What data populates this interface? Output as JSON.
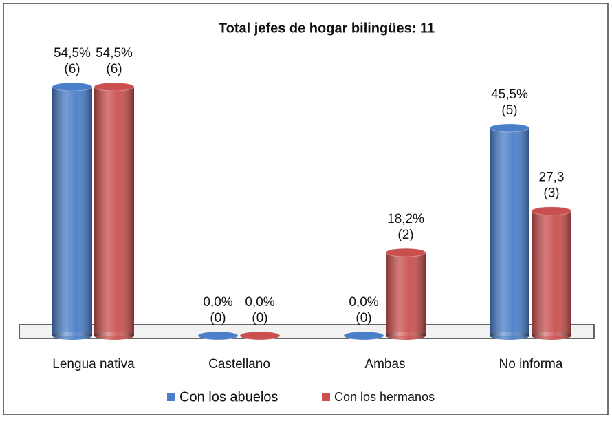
{
  "chart_data": {
    "type": "bar",
    "title": "Total jefes de hogar bilingües: 11",
    "categories": [
      "Lengua nativa",
      "Castellano",
      "Ambas",
      "No informa"
    ],
    "series": [
      {
        "name": "Con los abuelos",
        "color": "#4a7ec8",
        "values": [
          54.5,
          0,
          0,
          45.5
        ],
        "value_labels": [
          "54,5%",
          "0,0%",
          "0,0%",
          "45,5%"
        ],
        "counts": [
          6,
          0,
          0,
          5
        ],
        "count_labels": [
          "(6)",
          "(0)",
          "(0)",
          "(5)"
        ]
      },
      {
        "name": "Con los hermanos",
        "color": "#c9504e",
        "values": [
          54.5,
          0,
          18.2,
          27.3
        ],
        "value_labels": [
          "54,5%",
          "0,0%",
          "18,2%",
          "27,3"
        ],
        "counts": [
          6,
          0,
          2,
          3
        ],
        "count_labels": [
          "(6)",
          "(0)",
          "(2)",
          "(3)"
        ]
      }
    ],
    "legend": "bottom"
  }
}
